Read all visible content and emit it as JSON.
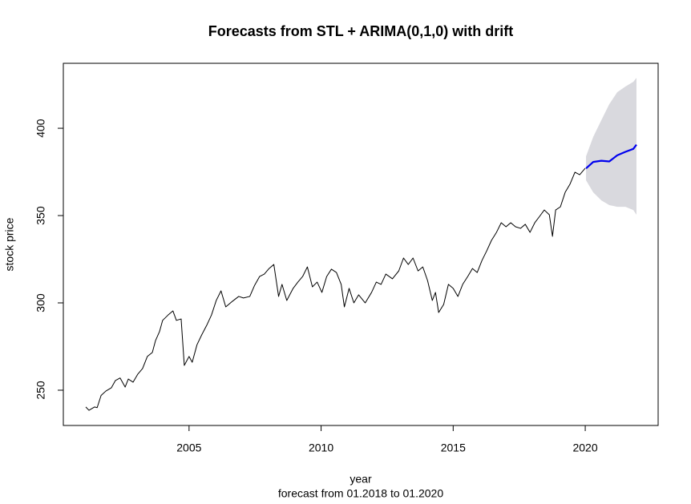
{
  "chart_data": {
    "type": "line",
    "title": "Forecasts from STL +  ARIMA(0,1,0) with drift",
    "x_label": "year",
    "caption": "forecast from 01.2018 to 01.2020",
    "y_label": "stock price",
    "xlim": [
      2000.24,
      2022.76
    ],
    "ylim": [
      229.8,
      437.2
    ],
    "xticks": [
      2005,
      2010,
      2015,
      2020
    ],
    "yticks": [
      250,
      300,
      350,
      400
    ],
    "grid": false,
    "interval": {
      "color": "#d9d9de",
      "x": [
        2020.03,
        2020.3,
        2020.61,
        2020.91,
        2021.21,
        2021.52,
        2021.82,
        2021.94
      ],
      "lower": [
        370.2,
        363.3,
        358.7,
        356,
        355,
        355,
        353.2,
        350.5
      ],
      "upper": [
        383.9,
        395,
        404.6,
        413.8,
        420.6,
        423.9,
        426.6,
        428.9
      ]
    },
    "series": [
      {
        "color": "#000000",
        "x": [
          2001.09,
          2001.21,
          2001.42,
          2001.52,
          2001.67,
          2001.85,
          2002.06,
          2002.21,
          2002.39,
          2002.58,
          2002.7,
          2002.88,
          2003.06,
          2003.24,
          2003.42,
          2003.61,
          2003.73,
          2003.88,
          2004.0,
          2004.21,
          2004.39,
          2004.52,
          2004.7,
          2004.82,
          2005.0,
          2005.12,
          2005.3,
          2005.48,
          2005.67,
          2005.85,
          2006.03,
          2006.21,
          2006.39,
          2006.64,
          2006.88,
          2007.06,
          2007.3,
          2007.48,
          2007.67,
          2007.85,
          2008.03,
          2008.21,
          2008.39,
          2008.52,
          2008.7,
          2008.94,
          2009.12,
          2009.3,
          2009.48,
          2009.67,
          2009.85,
          2010.03,
          2010.21,
          2010.39,
          2010.58,
          2010.76,
          2010.88,
          2011.06,
          2011.24,
          2011.42,
          2011.67,
          2011.91,
          2012.09,
          2012.27,
          2012.45,
          2012.7,
          2012.94,
          2013.12,
          2013.3,
          2013.48,
          2013.67,
          2013.85,
          2014.03,
          2014.21,
          2014.33,
          2014.45,
          2014.64,
          2014.82,
          2015.0,
          2015.18,
          2015.36,
          2015.55,
          2015.73,
          2015.91,
          2016.09,
          2016.27,
          2016.45,
          2016.64,
          2016.82,
          2017.0,
          2017.18,
          2017.36,
          2017.55,
          2017.73,
          2017.91,
          2018.09,
          2018.27,
          2018.45,
          2018.64,
          2018.76,
          2018.88,
          2019.06,
          2019.24,
          2019.42,
          2019.61,
          2019.79,
          2020.0
        ],
        "values": [
          240.4,
          238.5,
          240.4,
          240,
          247,
          249.5,
          251.4,
          255.5,
          257,
          251.8,
          256.4,
          254.6,
          259.2,
          262.4,
          269.3,
          271.6,
          278.4,
          283.5,
          290,
          293.1,
          295.4,
          290,
          290.8,
          264.2,
          269.3,
          266,
          276,
          281.7,
          287.2,
          293.1,
          301.4,
          306.9,
          297.7,
          300.9,
          303.7,
          302.8,
          303.7,
          310,
          315.1,
          316.5,
          319.7,
          322,
          303.7,
          310.6,
          301.4,
          308.3,
          311.9,
          315.1,
          320.6,
          309.2,
          311.9,
          306,
          315.1,
          319.3,
          317.4,
          310.6,
          297.7,
          308.3,
          300,
          304.6,
          300,
          306,
          311.9,
          310.6,
          316.5,
          313.8,
          318.3,
          325.7,
          322,
          325.7,
          318.3,
          320.6,
          312.8,
          301.4,
          306,
          294.5,
          299.1,
          310.6,
          308.3,
          303.7,
          310.6,
          315.1,
          319.7,
          317.4,
          324.3,
          329.8,
          335.8,
          340.4,
          345.9,
          343.6,
          345.9,
          343.6,
          342.7,
          345,
          340.4,
          345.9,
          349.5,
          353.2,
          350.5,
          338.1,
          353.2,
          355,
          363.3,
          367.9,
          374.8,
          373.4,
          377.1
        ]
      },
      {
        "color": "#0000ee",
        "x": [
          2020.03,
          2020.3,
          2020.61,
          2020.91,
          2021.21,
          2021.52,
          2021.82,
          2021.94
        ],
        "values": [
          377,
          380.7,
          381.4,
          381,
          384.5,
          386.5,
          388.2,
          390.6
        ]
      }
    ]
  }
}
